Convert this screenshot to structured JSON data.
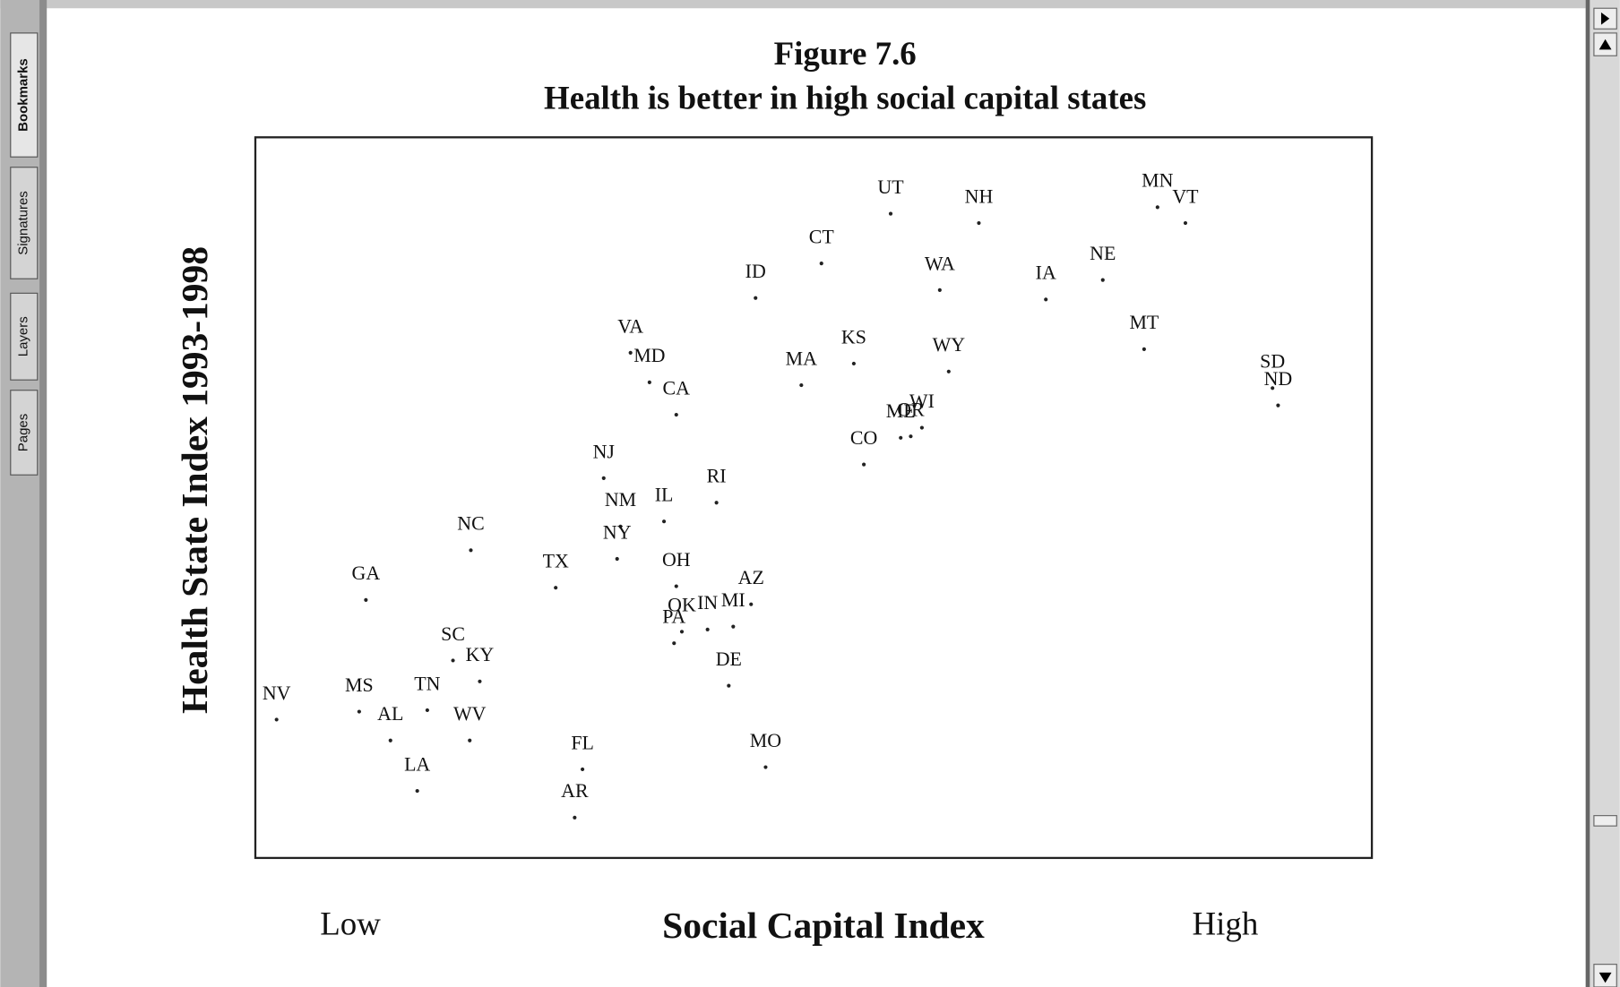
{
  "sidebar_tabs": [
    "Bookmarks",
    "Signatures",
    "Layers",
    "Pages"
  ],
  "chart_data": {
    "type": "scatter",
    "title": "Figure 7.6",
    "subtitle": "Health is better in high social capital states",
    "xlabel": "Social Capital Index",
    "ylabel": "Health State Index 1993-1998",
    "x_low_label": "Low",
    "x_high_label": "High",
    "color": "#222222",
    "xlim": [
      0,
      100
    ],
    "ylim": [
      0,
      100
    ],
    "point_labels": [
      "UT",
      "NH",
      "MN",
      "VT",
      "CT",
      "WA",
      "IA",
      "NE",
      "ID",
      "MT",
      "VA",
      "MD",
      "KS",
      "MA",
      "WY",
      "SD",
      "ND",
      "CA",
      "ME",
      "OR",
      "WI",
      "CO",
      "NJ",
      "RI",
      "IL",
      "NM",
      "NY",
      "NC",
      "TX",
      "GA",
      "OH",
      "AZ",
      "OK",
      "IN",
      "MI",
      "PA",
      "SC",
      "KY",
      "DE",
      "NV",
      "MS",
      "TN",
      "AL",
      "WV",
      "LA",
      "FL",
      "MO",
      "AR"
    ],
    "x": [
      56.9,
      64.8,
      80.8,
      83.3,
      50.7,
      61.3,
      70.8,
      75.9,
      44.8,
      79.6,
      33.6,
      35.3,
      53.6,
      48.9,
      62.1,
      91.1,
      91.6,
      37.7,
      57.8,
      58.7,
      59.7,
      54.5,
      31.2,
      41.3,
      36.6,
      32.7,
      32.4,
      19.3,
      26.9,
      9.9,
      37.7,
      44.4,
      38.2,
      40.5,
      42.8,
      37.5,
      17.7,
      20.1,
      42.4,
      1.9,
      9.3,
      15.4,
      12.1,
      19.2,
      14.5,
      29.3,
      45.7,
      28.6
    ],
    "values": [
      89.4,
      88.1,
      90.3,
      88.1,
      82.5,
      78.8,
      77.5,
      80.2,
      77.7,
      70.6,
      70.1,
      66.0,
      68.6,
      65.6,
      67.5,
      65.2,
      62.8,
      61.5,
      58.3,
      58.5,
      59.7,
      54.6,
      52.7,
      49.3,
      46.7,
      46.0,
      41.5,
      42.7,
      37.5,
      35.8,
      37.7,
      35.2,
      31.4,
      31.7,
      32.1,
      29.8,
      27.4,
      24.5,
      23.9,
      19.2,
      20.3,
      20.5,
      16.3,
      16.3,
      9.3,
      12.3,
      12.6,
      5.6
    ]
  }
}
